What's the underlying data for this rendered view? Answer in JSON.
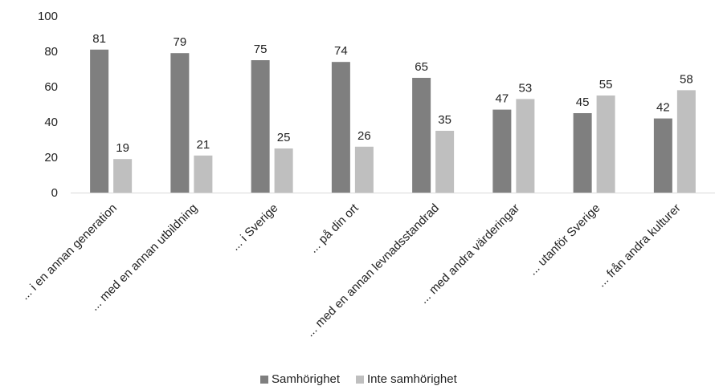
{
  "chart_data": {
    "type": "bar",
    "categories": [
      "... i en annan generation",
      "... med en annan utbildning",
      "... i Sverige",
      "... på din ort",
      "... med en annan levnadsstandrad",
      "... med andra värderingar",
      "... utanför Sverige",
      "... från andra kulturer"
    ],
    "series": [
      {
        "name": "Samhörighet",
        "values": [
          81,
          79,
          75,
          74,
          65,
          47,
          45,
          42
        ],
        "color": "#7f7f7f"
      },
      {
        "name": "Inte samhörighet",
        "values": [
          19,
          21,
          25,
          26,
          35,
          53,
          55,
          58
        ],
        "color": "#bfbfbf"
      }
    ],
    "ylim": [
      0,
      100
    ],
    "yticks": [
      0,
      20,
      40,
      60,
      80,
      100
    ],
    "grid": false,
    "data_labels": true,
    "legend_position": "bottom-center"
  }
}
